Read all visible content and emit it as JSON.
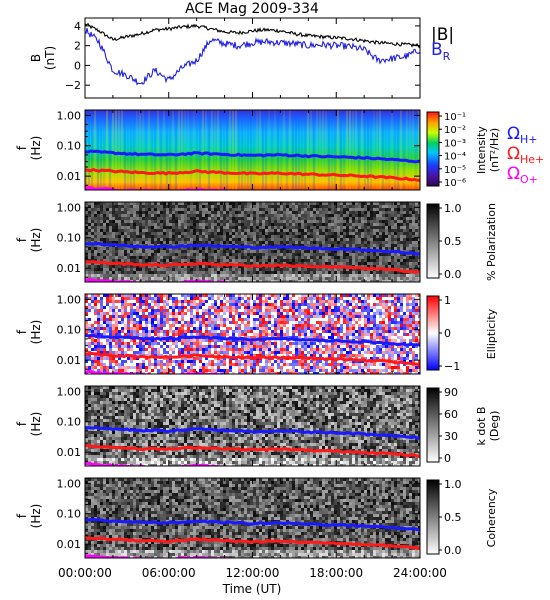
{
  "title": "ACE Mag 2009-334",
  "colors": {
    "b_total": "#000000",
    "b_radial": "#1f1fe0",
    "omega_h": "#1a1aff",
    "omega_he": "#ff1a1a",
    "omega_o": "#ff00ff"
  },
  "chart_data": [
    {
      "type": "line",
      "panel": "magnetic-field",
      "ylabel": "B",
      "yunit": "(nT)",
      "ylim": [
        -3.3,
        4.8
      ],
      "yticks": [
        "4",
        "2",
        "0",
        "−2"
      ],
      "ytick_values": [
        4,
        2,
        0,
        -2
      ],
      "x_hours": [
        0,
        1,
        2,
        3,
        4,
        5,
        6,
        7,
        8,
        9,
        10,
        11,
        12,
        13,
        14,
        15,
        16,
        17,
        18,
        19,
        20,
        21,
        22,
        23,
        24
      ],
      "series": [
        {
          "name": "|B|",
          "values": [
            4.2,
            3.5,
            2.6,
            2.9,
            3.2,
            3.6,
            3.7,
            3.9,
            4.0,
            3.7,
            3.4,
            3.3,
            3.5,
            3.6,
            3.5,
            3.2,
            3.0,
            2.9,
            2.8,
            2.7,
            2.5,
            2.3,
            2.2,
            2.1,
            2.0
          ]
        },
        {
          "name": "B_R",
          "values": [
            3.6,
            2.4,
            -0.5,
            -1.0,
            -1.8,
            -0.5,
            -1.5,
            -0.2,
            0.5,
            2.6,
            2.2,
            2.0,
            2.3,
            2.4,
            2.3,
            2.2,
            2.0,
            2.1,
            2.0,
            1.9,
            1.6,
            0.5,
            0.7,
            0.9,
            1.6
          ]
        }
      ]
    },
    {
      "type": "heatmap",
      "panel": "intensity",
      "ylabel": "f",
      "yunit": "(Hz)",
      "colorbar_label": "Intensity",
      "colorbar_unit": "(nT²/Hz)",
      "colorbar_ticks": [
        "10⁻¹",
        "10⁻²",
        "10⁻³",
        "10⁻⁴",
        "10⁻⁵",
        "10⁻⁶"
      ],
      "colormap": "rainbow"
    },
    {
      "type": "heatmap",
      "panel": "polarization",
      "ylabel": "f",
      "yunit": "(Hz)",
      "colorbar_label": "% Polarization",
      "colorbar_ticks": [
        "1.0",
        "0.5",
        "0.0"
      ],
      "colormap": "gray"
    },
    {
      "type": "heatmap",
      "panel": "ellipticity",
      "ylabel": "f",
      "yunit": "(Hz)",
      "colorbar_label": "Ellipticity",
      "colorbar_ticks": [
        "1",
        "0",
        "−1"
      ],
      "colormap": "blue-white-red"
    },
    {
      "type": "heatmap",
      "panel": "k-dot-b",
      "ylabel": "f",
      "yunit": "(Hz)",
      "colorbar_label": "k dot B",
      "colorbar_unit": "(Deg)",
      "colorbar_ticks": [
        "90",
        "60",
        "30",
        "0"
      ],
      "colormap": "gray"
    },
    {
      "type": "heatmap",
      "panel": "coherency",
      "ylabel": "f",
      "yunit": "(Hz)",
      "colorbar_label": "Coherency",
      "colorbar_ticks": [
        "1.0",
        "0.5",
        "0.0"
      ],
      "colormap": "gray"
    }
  ],
  "legend_b": {
    "total": "|B|",
    "radial_main": "B",
    "radial_sub": "R"
  },
  "legend_omega": [
    {
      "symbol": "Ω",
      "sub": "H+",
      "color": "#1a1aff"
    },
    {
      "symbol": "Ω",
      "sub": "He+",
      "color": "#ff1a1a"
    },
    {
      "symbol": "Ω",
      "sub": "O+",
      "color": "#ff00ff"
    }
  ],
  "freq_ticks": [
    "1.00",
    "0.10",
    "0.01"
  ],
  "freq_tick_values": [
    1.0,
    0.1,
    0.01
  ],
  "freq_range": [
    0.0035,
    1.5
  ],
  "gyrofrequency_hz": {
    "x_hours": [
      0,
      2,
      4,
      6,
      8,
      10,
      12,
      14,
      16,
      18,
      20,
      22,
      24
    ],
    "H+": [
      0.065,
      0.058,
      0.052,
      0.05,
      0.057,
      0.052,
      0.048,
      0.05,
      0.046,
      0.043,
      0.04,
      0.035,
      0.03
    ],
    "He+": [
      0.0163,
      0.0145,
      0.013,
      0.0125,
      0.0143,
      0.013,
      0.012,
      0.0125,
      0.0115,
      0.0108,
      0.01,
      0.0088,
      0.0075
    ],
    "O+": [
      0.0041,
      0.0036,
      0.0033,
      0.0031,
      0.0036,
      0.0033,
      0.003,
      0.0031,
      0.0029,
      0.0027,
      0.0025,
      0.0022,
      0.0019
    ]
  },
  "x_axis": {
    "label": "Time (UT)",
    "ticks": [
      "00:00:00",
      "06:00:00",
      "12:00:00",
      "18:00:00",
      "24:00:00"
    ],
    "tick_hours": [
      0,
      6,
      12,
      18,
      24
    ]
  }
}
